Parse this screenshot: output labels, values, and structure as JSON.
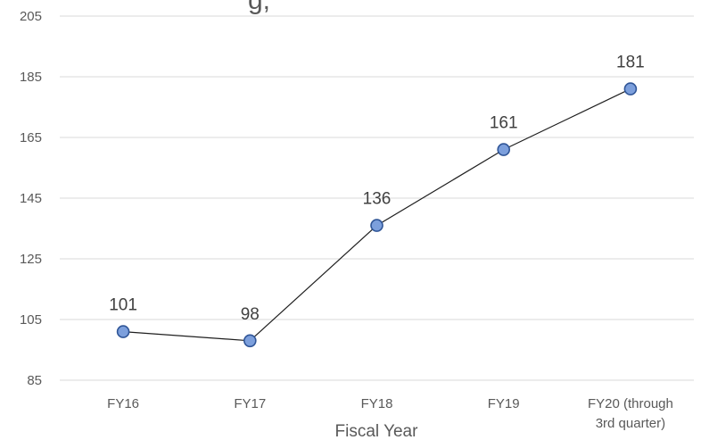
{
  "chart_data": {
    "type": "line",
    "title": "",
    "title_visible_fragment": "g,",
    "xlabel": "Fiscal Year",
    "ylabel": "",
    "categories": [
      "FY16",
      "FY17",
      "FY18",
      "FY19",
      "FY20 (through 3rd quarter)"
    ],
    "category_lines": [
      [
        "FY16"
      ],
      [
        "FY17"
      ],
      [
        "FY18"
      ],
      [
        "FY19"
      ],
      [
        "FY20 (through",
        "3rd quarter)"
      ]
    ],
    "series": [
      {
        "values": [
          101,
          98,
          136,
          161,
          181
        ],
        "data_labels": [
          "101",
          "98",
          "136",
          "161",
          "181"
        ]
      }
    ],
    "ylim": [
      85,
      205
    ],
    "yticks": [
      85,
      105,
      125,
      145,
      165,
      185,
      205
    ],
    "grid": true,
    "legend": "none",
    "colors": {
      "line": "#1f1f1f",
      "marker_fill": "#7c9fdc",
      "marker_stroke": "#2f5597",
      "grid": "#d9d9d9"
    }
  }
}
